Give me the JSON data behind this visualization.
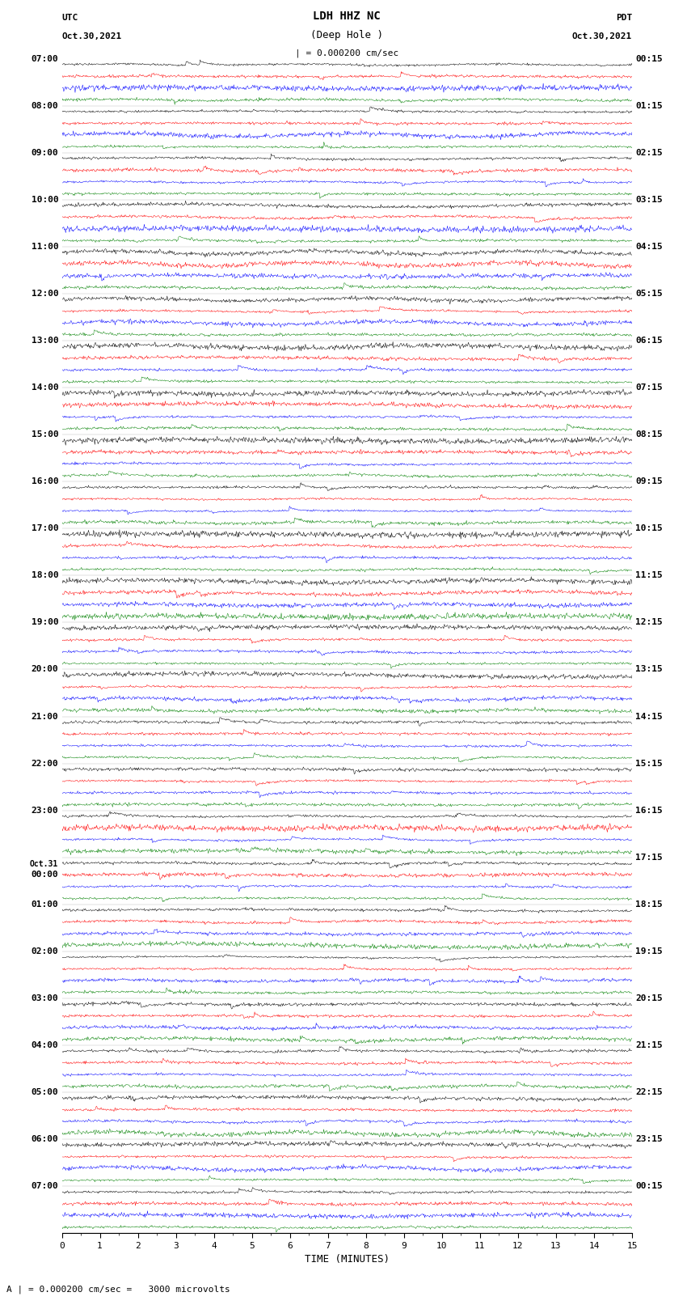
{
  "title_line1": "LDH HHZ NC",
  "title_line2": "(Deep Hole )",
  "scale_label": "| = 0.000200 cm/sec",
  "bottom_label": "A | = 0.000200 cm/sec =   3000 microvolts",
  "utc_label": "UTC",
  "utc_date": "Oct.30,2021",
  "pdt_label": "PDT",
  "pdt_date": "Oct.30,2021",
  "xlabel": "TIME (MINUTES)",
  "fig_width": 8.5,
  "fig_height": 16.13,
  "dpi": 100,
  "background_color": "#ffffff",
  "trace_colors": [
    "#000000",
    "#ff0000",
    "#0000ff",
    "#008000"
  ],
  "left_times_utc": [
    "07:00",
    "08:00",
    "09:00",
    "10:00",
    "11:00",
    "12:00",
    "13:00",
    "14:00",
    "15:00",
    "16:00",
    "17:00",
    "18:00",
    "19:00",
    "20:00",
    "21:00",
    "22:00",
    "23:00",
    "Oct.31\n00:00",
    "01:00",
    "02:00",
    "03:00",
    "04:00",
    "05:00",
    "06:00",
    "07:00"
  ],
  "right_times_pdt": [
    "00:15",
    "01:15",
    "02:15",
    "03:15",
    "04:15",
    "05:15",
    "06:15",
    "07:15",
    "08:15",
    "09:15",
    "10:15",
    "11:15",
    "12:15",
    "13:15",
    "14:15",
    "15:15",
    "16:15",
    "17:15",
    "18:15",
    "19:15",
    "20:15",
    "21:15",
    "22:15",
    "23:15",
    "00:15"
  ],
  "n_rows": 25,
  "traces_per_row": 4,
  "time_minutes": 15,
  "samples_per_trace": 900,
  "amplitude_scale": 0.9,
  "noise_seed": 42
}
